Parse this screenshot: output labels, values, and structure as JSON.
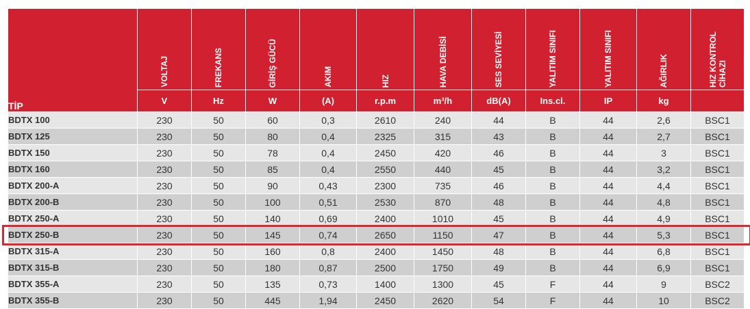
{
  "table": {
    "type_header": "TİP",
    "columns": [
      {
        "label": "VOLTAJ",
        "unit": "V"
      },
      {
        "label": "FREKANS",
        "unit": "Hz"
      },
      {
        "label": "GİRİŞ GÜCÜ",
        "unit": "W"
      },
      {
        "label": "AKIM",
        "unit": "(A)"
      },
      {
        "label": "HIZ",
        "unit": "r.p.m"
      },
      {
        "label": "HAVA DEBİSİ",
        "unit": "m³/h"
      },
      {
        "label": "SES SEVİYESİ",
        "unit": "dB(A)"
      },
      {
        "label": "YALITIM SINIFI",
        "unit": "Ins.cl."
      },
      {
        "label": "YALITIM SINIFI",
        "unit": "IP"
      },
      {
        "label": "AĞIRLIK",
        "unit": "kg"
      },
      {
        "label": "HIZ KONTROL CİHAZI",
        "unit": ""
      }
    ],
    "rows": [
      {
        "tip": "BDTX 100",
        "values": [
          "230",
          "50",
          "60",
          "0,3",
          "2610",
          "240",
          "44",
          "B",
          "44",
          "2,6",
          "BSC1"
        ]
      },
      {
        "tip": "BDTX 125",
        "values": [
          "230",
          "50",
          "80",
          "0,4",
          "2325",
          "315",
          "43",
          "B",
          "44",
          "2,7",
          "BSC1"
        ]
      },
      {
        "tip": "BDTX 150",
        "values": [
          "230",
          "50",
          "78",
          "0,4",
          "2450",
          "420",
          "46",
          "B",
          "44",
          "3",
          "BSC1"
        ]
      },
      {
        "tip": "BDTX 160",
        "values": [
          "230",
          "50",
          "85",
          "0,4",
          "2550",
          "440",
          "45",
          "B",
          "44",
          "3,2",
          "BSC1"
        ]
      },
      {
        "tip": "BDTX 200-A",
        "values": [
          "230",
          "50",
          "90",
          "0,43",
          "2300",
          "735",
          "46",
          "B",
          "44",
          "4,4",
          "BSC1"
        ]
      },
      {
        "tip": "BDTX 200-B",
        "values": [
          "230",
          "50",
          "100",
          "0,51",
          "2530",
          "870",
          "48",
          "B",
          "44",
          "4,8",
          "BSC1"
        ]
      },
      {
        "tip": "BDTX 250-A",
        "values": [
          "230",
          "50",
          "140",
          "0,69",
          "2400",
          "1010",
          "45",
          "B",
          "44",
          "4,9",
          "BSC1"
        ]
      },
      {
        "tip": "BDTX 250-B",
        "values": [
          "230",
          "50",
          "145",
          "0,74",
          "2650",
          "1150",
          "47",
          "B",
          "44",
          "5,3",
          "BSC1"
        ]
      },
      {
        "tip": "BDTX 315-A",
        "values": [
          "230",
          "50",
          "160",
          "0,8",
          "2400",
          "1450",
          "48",
          "B",
          "44",
          "6,8",
          "BSC1"
        ]
      },
      {
        "tip": "BDTX 315-B",
        "values": [
          "230",
          "50",
          "180",
          "0,87",
          "2500",
          "1750",
          "49",
          "B",
          "44",
          "6,9",
          "BSC1"
        ]
      },
      {
        "tip": "BDTX 355-A",
        "values": [
          "230",
          "50",
          "135",
          "0,73",
          "1400",
          "1300",
          "45",
          "F",
          "44",
          "9",
          "BSC2"
        ]
      },
      {
        "tip": "BDTX 355-B",
        "values": [
          "230",
          "50",
          "445",
          "1,94",
          "2450",
          "2620",
          "54",
          "F",
          "44",
          "10",
          "BSC2"
        ]
      }
    ],
    "highlighted_row": 7,
    "colors": {
      "header": "#d1202f",
      "row_light": "#e6e6e6",
      "row_dark": "#cfcfcf",
      "highlight": "#e3242b"
    }
  }
}
